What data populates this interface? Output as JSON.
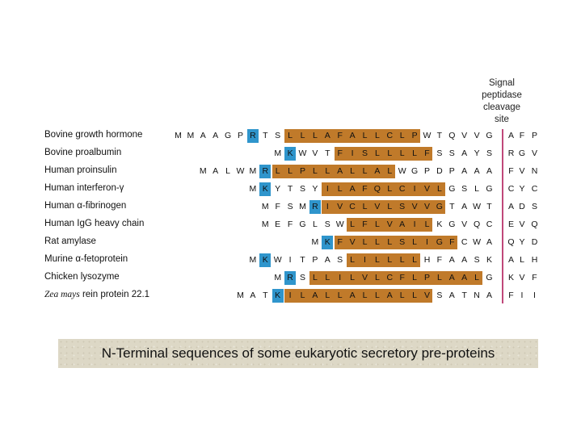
{
  "header": {
    "lines": [
      "Signal",
      "peptidase",
      "cleavage",
      "site"
    ]
  },
  "colors": {
    "hydrophobic_core": "#c07a2a",
    "basic_residue": "#2f95cc",
    "cleavage_line": "#c0487a",
    "caption_bg": "#ddd8c6"
  },
  "rows": [
    {
      "name": "Bovine growth hormone",
      "signal": [
        "M",
        "M",
        "A",
        "A",
        "G",
        "P",
        "R",
        "T",
        "S",
        "L",
        "L",
        "L",
        "A",
        "F",
        "A",
        "L",
        "L",
        "C",
        "L",
        "P",
        "W",
        "T",
        "Q",
        "V",
        "V",
        "G"
      ],
      "basic": [
        6
      ],
      "core": [
        9,
        19
      ],
      "mature": [
        "A",
        "F",
        "P"
      ]
    },
    {
      "name": "Bovine proalbumin",
      "signal": [
        "M",
        "K",
        "W",
        "V",
        "T",
        "F",
        "I",
        "S",
        "L",
        "L",
        "L",
        "L",
        "F",
        "S",
        "S",
        "A",
        "Y",
        "S"
      ],
      "basic": [
        1
      ],
      "core": [
        5,
        12
      ],
      "mature": [
        "R",
        "G",
        "V"
      ]
    },
    {
      "name": "Human proinsulin",
      "signal": [
        "M",
        "A",
        "L",
        "W",
        "M",
        "R",
        "L",
        "L",
        "P",
        "L",
        "L",
        "A",
        "L",
        "L",
        "A",
        "L",
        "W",
        "G",
        "P",
        "D",
        "P",
        "A",
        "A",
        "A"
      ],
      "basic": [
        5
      ],
      "core": [
        6,
        15
      ],
      "mature": [
        "F",
        "V",
        "N"
      ]
    },
    {
      "name": "Human interferon-γ",
      "signal": [
        "M",
        "K",
        "Y",
        "T",
        "S",
        "Y",
        "I",
        "L",
        "A",
        "F",
        "Q",
        "L",
        "C",
        "I",
        "V",
        "L",
        "G",
        "S",
        "L",
        "G"
      ],
      "basic": [
        1
      ],
      "core": [
        6,
        15
      ],
      "mature": [
        "C",
        "Y",
        "C"
      ]
    },
    {
      "name": "Human α-fibrinogen",
      "signal": [
        "M",
        "F",
        "S",
        "M",
        "R",
        "I",
        "V",
        "C",
        "L",
        "V",
        "L",
        "S",
        "V",
        "V",
        "G",
        "T",
        "A",
        "W",
        "T"
      ],
      "basic": [
        4
      ],
      "core": [
        5,
        14
      ],
      "mature": [
        "A",
        "D",
        "S"
      ]
    },
    {
      "name": "Human IgG heavy chain",
      "signal": [
        "M",
        "E",
        "F",
        "G",
        "L",
        "S",
        "W",
        "L",
        "F",
        "L",
        "V",
        "A",
        "I",
        "L",
        "K",
        "G",
        "V",
        "Q",
        "C"
      ],
      "basic": [],
      "core": [
        7,
        13
      ],
      "mature": [
        "E",
        "V",
        "Q"
      ]
    },
    {
      "name": "Rat amylase",
      "signal": [
        "M",
        "K",
        "F",
        "V",
        "L",
        "L",
        "L",
        "S",
        "L",
        "I",
        "G",
        "F",
        "C",
        "W",
        "A"
      ],
      "basic": [
        1
      ],
      "core": [
        2,
        11
      ],
      "mature": [
        "Q",
        "Y",
        "D"
      ]
    },
    {
      "name": "Murine α-fetoprotein",
      "signal": [
        "M",
        "K",
        "W",
        "I",
        "T",
        "P",
        "A",
        "S",
        "L",
        "I",
        "L",
        "L",
        "L",
        "L",
        "H",
        "F",
        "A",
        "A",
        "S",
        "K"
      ],
      "basic": [
        1
      ],
      "core": [
        8,
        13
      ],
      "mature": [
        "A",
        "L",
        "H"
      ]
    },
    {
      "name": "Chicken lysozyme",
      "signal": [
        "M",
        "R",
        "S",
        "L",
        "L",
        "I",
        "L",
        "V",
        "L",
        "C",
        "F",
        "L",
        "P",
        "L",
        "A",
        "A",
        "L",
        "G"
      ],
      "basic": [
        1
      ],
      "core": [
        3,
        16
      ],
      "mature": [
        "K",
        "V",
        "F"
      ]
    },
    {
      "name_italic": "Zea mays",
      "name_rest": " rein protein 22.1",
      "signal": [
        "M",
        "A",
        "T",
        "K",
        "I",
        "L",
        "A",
        "L",
        "L",
        "A",
        "L",
        "L",
        "A",
        "L",
        "L",
        "V",
        "S",
        "A",
        "T",
        "N",
        "A"
      ],
      "basic": [
        3
      ],
      "core": [
        4,
        15
      ],
      "mature": [
        "F",
        "I",
        "I"
      ]
    }
  ],
  "caption": "N-Terminal sequences of some eukaryotic secretory pre-proteins"
}
